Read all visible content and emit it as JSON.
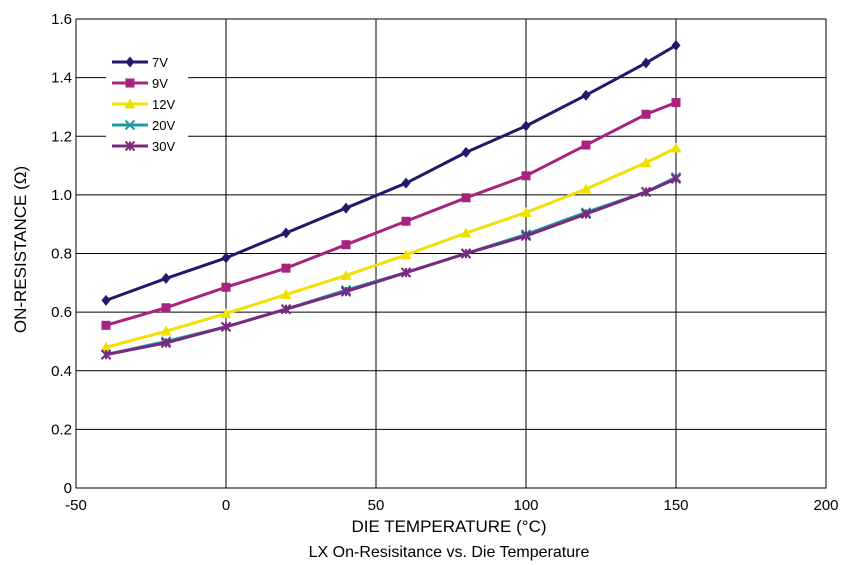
{
  "chart_data": {
    "type": "line",
    "title": "",
    "caption": "LX On-Resisitance vs. Die Temperature",
    "xlabel": "DIE TEMPERATURE (°C)",
    "ylabel": "ON-RESISTANCE (Ω)",
    "xlim": [
      -50,
      200
    ],
    "ylim": [
      0,
      1.6
    ],
    "xticks": [
      "-50",
      "0",
      "50",
      "100",
      "150",
      "200"
    ],
    "yticks": [
      "0",
      "0.2",
      "0.4",
      "0.6",
      "0.8",
      "1.0",
      "1.2",
      "1.4",
      "1.6"
    ],
    "grid": true,
    "legend_position": "top-left",
    "x": [
      -40,
      -20,
      0,
      20,
      40,
      60,
      80,
      100,
      120,
      140,
      150
    ],
    "series": [
      {
        "name": "7V",
        "color": "#1f1a6b",
        "marker": "diamond",
        "values": [
          0.64,
          0.715,
          0.785,
          0.87,
          0.955,
          1.04,
          1.145,
          1.235,
          1.34,
          1.45,
          1.51
        ]
      },
      {
        "name": "9V",
        "color": "#a8237f",
        "marker": "square",
        "values": [
          0.555,
          0.615,
          0.685,
          0.75,
          0.83,
          0.91,
          0.99,
          1.065,
          1.17,
          1.275,
          1.315
        ]
      },
      {
        "name": "12V",
        "color": "#f2e000",
        "marker": "triangle",
        "values": [
          0.48,
          0.535,
          0.595,
          0.66,
          0.725,
          0.795,
          0.87,
          0.94,
          1.02,
          1.11,
          1.16
        ]
      },
      {
        "name": "20V",
        "color": "#1b9aa3",
        "marker": "cross",
        "values": [
          0.455,
          0.5,
          0.55,
          0.61,
          0.675,
          0.735,
          0.8,
          0.865,
          0.94,
          1.01,
          1.06
        ]
      },
      {
        "name": "30V",
        "color": "#7a2a7e",
        "marker": "star",
        "values": [
          0.455,
          0.495,
          0.55,
          0.61,
          0.67,
          0.735,
          0.8,
          0.86,
          0.935,
          1.01,
          1.055
        ]
      }
    ]
  }
}
